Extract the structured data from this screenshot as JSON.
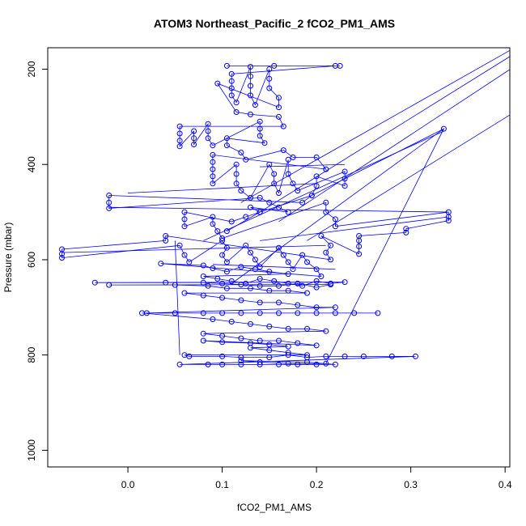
{
  "chart_data": {
    "type": "scatter",
    "title": "ATOM3 Northeast_Pacific_2 fCO2_PM1_AMS",
    "xlabel": "fCO2_PM1_AMS",
    "ylabel": "Pressure (mbar)",
    "xlim": [
      -0.085,
      0.405
    ],
    "ylim": [
      1035,
      155
    ],
    "y_inverted": true,
    "grid": false,
    "legend": "none",
    "x_ticks": [
      0.0,
      0.1,
      0.2,
      0.3,
      0.4
    ],
    "x_tick_labels": [
      "0.0",
      "0.1",
      "0.2",
      "0.3",
      "0.4"
    ],
    "y_ticks": [
      200,
      400,
      600,
      800,
      1000
    ],
    "y_tick_labels": [
      "200",
      "400",
      "600",
      "800",
      "1000"
    ],
    "color": "#0000ff",
    "series": [
      {
        "marker": "open-circle",
        "connected": true,
        "points": [
          [
            0.105,
            193
          ],
          [
            0.155,
            193
          ],
          [
            0.225,
            193
          ],
          [
            0.22,
            193
          ],
          [
            0.11,
            210
          ],
          [
            0.11,
            225
          ],
          [
            0.11,
            240
          ],
          [
            0.11,
            255
          ],
          [
            0.115,
            270
          ],
          [
            0.13,
            195
          ],
          [
            0.13,
            215
          ],
          [
            0.13,
            235
          ],
          [
            0.13,
            255
          ],
          [
            0.135,
            275
          ],
          [
            0.15,
            200
          ],
          [
            0.15,
            220
          ],
          [
            0.15,
            240
          ],
          [
            0.16,
            260
          ],
          [
            0.16,
            280
          ],
          [
            0.095,
            230
          ],
          [
            0.115,
            290
          ],
          [
            0.13,
            295
          ],
          [
            0.16,
            300
          ],
          [
            0.165,
            320
          ],
          [
            0.055,
            320
          ],
          [
            0.055,
            335
          ],
          [
            0.055,
            350
          ],
          [
            0.055,
            362
          ],
          [
            0.07,
            330
          ],
          [
            0.07,
            345
          ],
          [
            0.07,
            358
          ],
          [
            0.085,
            315
          ],
          [
            0.085,
            330
          ],
          [
            0.085,
            345
          ],
          [
            0.09,
            360
          ],
          [
            0.14,
            310
          ],
          [
            0.14,
            325
          ],
          [
            0.14,
            340
          ],
          [
            0.145,
            355
          ],
          [
            0.105,
            345
          ],
          [
            0.105,
            360
          ],
          [
            0.12,
            375
          ],
          [
            0.125,
            390
          ],
          [
            0.165,
            370
          ],
          [
            0.175,
            385
          ],
          [
            0.2,
            385
          ],
          [
            0.21,
            410
          ],
          [
            0.09,
            380
          ],
          [
            0.09,
            395
          ],
          [
            0.09,
            410
          ],
          [
            0.09,
            425
          ],
          [
            0.09,
            440
          ],
          [
            0.115,
            400
          ],
          [
            0.115,
            420
          ],
          [
            0.115,
            440
          ],
          [
            0.12,
            455
          ],
          [
            0.13,
            470
          ],
          [
            0.15,
            400
          ],
          [
            0.155,
            420
          ],
          [
            0.155,
            440
          ],
          [
            0.16,
            460
          ],
          [
            0.17,
            390
          ],
          [
            0.17,
            420
          ],
          [
            0.175,
            440
          ],
          [
            0.18,
            455
          ],
          [
            0.23,
            415
          ],
          [
            0.23,
            430
          ],
          [
            0.23,
            445
          ],
          [
            0.2,
            425
          ],
          [
            0.2,
            445
          ],
          [
            0.195,
            465
          ],
          [
            0.185,
            480
          ],
          [
            -0.02,
            465
          ],
          [
            -0.02,
            480
          ],
          [
            -0.02,
            492
          ],
          [
            0.14,
            470
          ],
          [
            0.15,
            480
          ],
          [
            0.16,
            490
          ],
          [
            0.17,
            500
          ],
          [
            0.13,
            490
          ],
          [
            0.14,
            500
          ],
          [
            0.125,
            510
          ],
          [
            0.11,
            520
          ],
          [
            0.06,
            500
          ],
          [
            0.06,
            515
          ],
          [
            0.06,
            530
          ],
          [
            0.09,
            510
          ],
          [
            0.09,
            525
          ],
          [
            0.095,
            540
          ],
          [
            0.1,
            555
          ],
          [
            0.21,
            480
          ],
          [
            0.21,
            500
          ],
          [
            0.22,
            515
          ],
          [
            0.22,
            530
          ],
          [
            0.34,
            500
          ],
          [
            0.34,
            510
          ],
          [
            0.34,
            518
          ],
          [
            0.295,
            535
          ],
          [
            0.295,
            543
          ],
          [
            0.245,
            550
          ],
          [
            0.245,
            560
          ],
          [
            0.245,
            572
          ],
          [
            0.245,
            588
          ],
          [
            0.205,
            550
          ],
          [
            0.215,
            570
          ],
          [
            0.21,
            585
          ],
          [
            0.215,
            600
          ],
          [
            0.04,
            550
          ],
          [
            0.04,
            560
          ],
          [
            -0.07,
            578
          ],
          [
            -0.07,
            588
          ],
          [
            -0.07,
            596
          ],
          [
            0.055,
            570
          ],
          [
            0.06,
            590
          ],
          [
            0.065,
            605
          ],
          [
            0.1,
            560
          ],
          [
            0.105,
            575
          ],
          [
            0.1,
            590
          ],
          [
            0.105,
            605
          ],
          [
            0.125,
            570
          ],
          [
            0.13,
            585
          ],
          [
            0.135,
            600
          ],
          [
            0.14,
            615
          ],
          [
            0.16,
            575
          ],
          [
            0.165,
            590
          ],
          [
            0.17,
            605
          ],
          [
            0.175,
            620
          ],
          [
            0.185,
            590
          ],
          [
            0.19,
            605
          ],
          [
            0.2,
            620
          ],
          [
            0.205,
            635
          ],
          [
            0.035,
            608
          ],
          [
            0.08,
            612
          ],
          [
            0.09,
            618
          ],
          [
            0.105,
            625
          ],
          [
            0.12,
            615
          ],
          [
            0.135,
            620
          ],
          [
            0.15,
            625
          ],
          [
            0.17,
            630
          ],
          [
            0.08,
            635
          ],
          [
            0.095,
            640
          ],
          [
            0.11,
            645
          ],
          [
            0.125,
            650
          ],
          [
            0.14,
            640
          ],
          [
            0.155,
            645
          ],
          [
            0.17,
            650
          ],
          [
            0.185,
            655
          ],
          [
            0.2,
            645
          ],
          [
            0.215,
            650
          ],
          [
            0.23,
            647
          ],
          [
            -0.035,
            648
          ],
          [
            0.04,
            648
          ],
          [
            0.08,
            648
          ],
          [
            0.1,
            650
          ],
          [
            0.12,
            652
          ],
          [
            0.14,
            655
          ],
          [
            0.16,
            655
          ],
          [
            0.18,
            650
          ],
          [
            0.2,
            658
          ],
          [
            0.215,
            652
          ],
          [
            -0.02,
            653
          ],
          [
            0.05,
            653
          ],
          [
            0.085,
            655
          ],
          [
            0.105,
            660
          ],
          [
            0.13,
            660
          ],
          [
            0.15,
            665
          ],
          [
            0.17,
            665
          ],
          [
            0.19,
            670
          ],
          [
            0.06,
            670
          ],
          [
            0.08,
            675
          ],
          [
            0.1,
            680
          ],
          [
            0.12,
            685
          ],
          [
            0.14,
            690
          ],
          [
            0.16,
            690
          ],
          [
            0.18,
            695
          ],
          [
            0.2,
            700
          ],
          [
            0.22,
            700
          ],
          [
            0.02,
            712
          ],
          [
            0.05,
            712
          ],
          [
            0.08,
            712
          ],
          [
            0.1,
            712
          ],
          [
            0.12,
            712
          ],
          [
            0.14,
            712
          ],
          [
            0.16,
            712
          ],
          [
            0.18,
            712
          ],
          [
            0.2,
            712
          ],
          [
            0.22,
            712
          ],
          [
            0.24,
            712
          ],
          [
            0.265,
            712
          ],
          [
            0.015,
            712
          ],
          [
            0.09,
            725
          ],
          [
            0.11,
            730
          ],
          [
            0.13,
            735
          ],
          [
            0.15,
            740
          ],
          [
            0.17,
            745
          ],
          [
            0.19,
            745
          ],
          [
            0.21,
            750
          ],
          [
            0.08,
            755
          ],
          [
            0.1,
            760
          ],
          [
            0.12,
            765
          ],
          [
            0.14,
            770
          ],
          [
            0.16,
            770
          ],
          [
            0.18,
            775
          ],
          [
            0.2,
            780
          ],
          [
            0.08,
            770
          ],
          [
            0.1,
            773
          ],
          [
            0.13,
            775
          ],
          [
            0.15,
            778
          ],
          [
            0.17,
            782
          ],
          [
            0.13,
            785
          ],
          [
            0.15,
            790
          ],
          [
            0.17,
            795
          ],
          [
            0.19,
            800
          ],
          [
            0.06,
            800
          ],
          [
            0.065,
            803
          ],
          [
            0.1,
            803
          ],
          [
            0.12,
            805
          ],
          [
            0.15,
            805
          ],
          [
            0.17,
            800
          ],
          [
            0.19,
            805
          ],
          [
            0.21,
            803
          ],
          [
            0.23,
            803
          ],
          [
            0.25,
            803
          ],
          [
            0.28,
            803
          ],
          [
            0.305,
            803
          ],
          [
            0.055,
            820
          ],
          [
            0.085,
            820
          ],
          [
            0.1,
            820
          ],
          [
            0.12,
            820
          ],
          [
            0.14,
            820
          ],
          [
            0.16,
            820
          ],
          [
            0.18,
            820
          ],
          [
            0.2,
            820
          ],
          [
            0.22,
            820
          ],
          [
            0.19,
            815
          ],
          [
            0.12,
            812
          ],
          [
            0.14,
            815
          ],
          [
            0.17,
            818
          ],
          [
            0.21,
            818
          ],
          [
            0.335,
            325
          ],
          [
            0.195,
            465
          ],
          [
            0.14,
            500
          ],
          [
            0.105,
            540
          ]
        ]
      }
    ],
    "extra_lines": [
      [
        [
          0.14,
          500
        ],
        [
          0.42,
          155
        ]
      ],
      [
        [
          0.16,
          520
        ],
        [
          0.44,
          155
        ]
      ],
      [
        [
          0.19,
          560
        ],
        [
          0.52,
          155
        ]
      ],
      [
        [
          0.12,
          480
        ],
        [
          0.41,
          155
        ]
      ],
      [
        [
          0.11,
          650
        ],
        [
          0.335,
          325
        ]
      ],
      [
        [
          0.08,
          560
        ],
        [
          0.335,
          330
        ]
      ],
      [
        [
          0.14,
          560
        ],
        [
          0.34,
          510
        ]
      ],
      [
        [
          -0.07,
          585
        ],
        [
          0.21,
          570
        ]
      ],
      [
        [
          -0.02,
          490
        ],
        [
          0.34,
          500
        ]
      ],
      [
        [
          0.09,
          610
        ],
        [
          0.22,
          620
        ]
      ],
      [
        [
          0.055,
          800
        ],
        [
          0.05,
          560
        ]
      ],
      [
        [
          0.0,
          460
        ],
        [
          0.2,
          440
        ]
      ],
      [
        [
          0.14,
          405
        ],
        [
          0.23,
          400
        ]
      ]
    ]
  }
}
